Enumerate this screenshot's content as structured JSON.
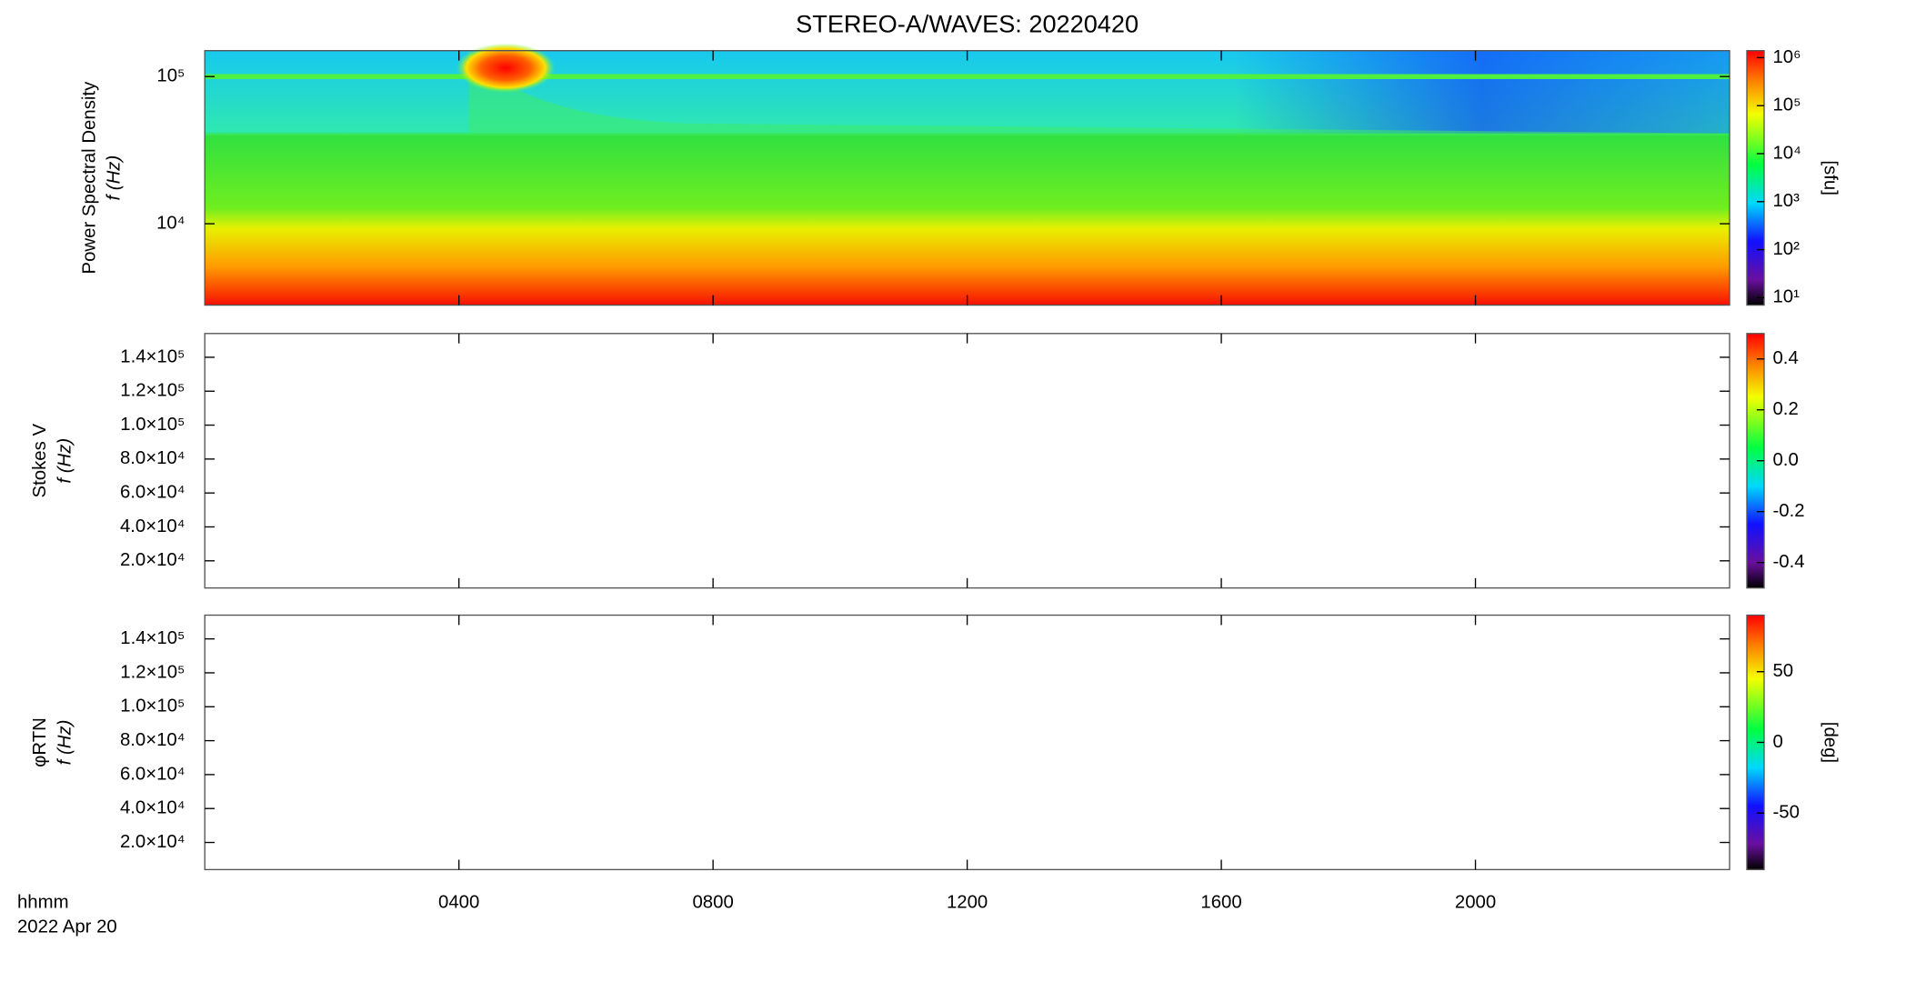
{
  "title": "STEREO-A/WAVES: 20220420",
  "x_axis": {
    "label": "hhmm",
    "date": "2022 Apr 20",
    "xlim": [
      0,
      24
    ],
    "xticks": [
      {
        "value": 4,
        "label": "0400"
      },
      {
        "value": 8,
        "label": "0800"
      },
      {
        "value": 12,
        "label": "1200"
      },
      {
        "value": 16,
        "label": "1600"
      },
      {
        "value": 20,
        "label": "2000"
      }
    ]
  },
  "chart_data": [
    {
      "type": "heatmap",
      "ylabel": [
        "Power Spectral Density",
        "f (Hz)"
      ],
      "ylog": true,
      "ylim": [
        2800,
        150000
      ],
      "yticks": [
        {
          "value": 10000,
          "label": "10⁴"
        },
        {
          "value": 100000,
          "label": "10⁵"
        }
      ],
      "colorbar": {
        "label": "[sfu]",
        "log": true,
        "clim": [
          7,
          1400000
        ],
        "ticks": [
          {
            "value": 10,
            "label": "10¹"
          },
          {
            "value": 100,
            "label": "10²"
          },
          {
            "value": 1000,
            "label": "10³"
          },
          {
            "value": 10000,
            "label": "10⁴"
          },
          {
            "value": 100000,
            "label": "10⁵"
          },
          {
            "value": 1000000,
            "label": "10⁶"
          }
        ]
      }
    },
    {
      "type": "heatmap",
      "ylabel": [
        "Stokes V",
        "f (Hz)"
      ],
      "ylog": false,
      "ylim": [
        4000,
        154000
      ],
      "yticks": [
        {
          "value": 20000,
          "label": "2.0×10⁴"
        },
        {
          "value": 40000,
          "label": "4.0×10⁴"
        },
        {
          "value": 60000,
          "label": "6.0×10⁴"
        },
        {
          "value": 80000,
          "label": "8.0×10⁴"
        },
        {
          "value": 100000,
          "label": "1.0×10⁵"
        },
        {
          "value": 120000,
          "label": "1.2×10⁵"
        },
        {
          "value": 140000,
          "label": "1.4×10⁵"
        }
      ],
      "colorbar": {
        "log": false,
        "clim": [
          -0.5,
          0.5
        ],
        "ticks": [
          {
            "value": -0.4,
            "label": "-0.4"
          },
          {
            "value": -0.2,
            "label": "-0.2"
          },
          {
            "value": 0,
            "label": "0.0"
          },
          {
            "value": 0.2,
            "label": "0.2"
          },
          {
            "value": 0.4,
            "label": "0.4"
          }
        ]
      }
    },
    {
      "type": "heatmap",
      "ylabel": [
        "φRTN",
        "f (Hz)"
      ],
      "ylog": false,
      "ylim": [
        4000,
        154000
      ],
      "yticks": [
        {
          "value": 20000,
          "label": "2.0×10⁴"
        },
        {
          "value": 40000,
          "label": "4.0×10⁴"
        },
        {
          "value": 60000,
          "label": "6.0×10⁴"
        },
        {
          "value": 80000,
          "label": "8.0×10⁴"
        },
        {
          "value": 100000,
          "label": "1.0×10⁵"
        },
        {
          "value": 120000,
          "label": "1.2×10⁵"
        },
        {
          "value": 140000,
          "label": "1.4×10⁵"
        }
      ],
      "colorbar": {
        "label": "[deg]",
        "log": false,
        "clim": [
          -90,
          90
        ],
        "ticks": [
          -50,
          0,
          50
        ]
      }
    }
  ]
}
